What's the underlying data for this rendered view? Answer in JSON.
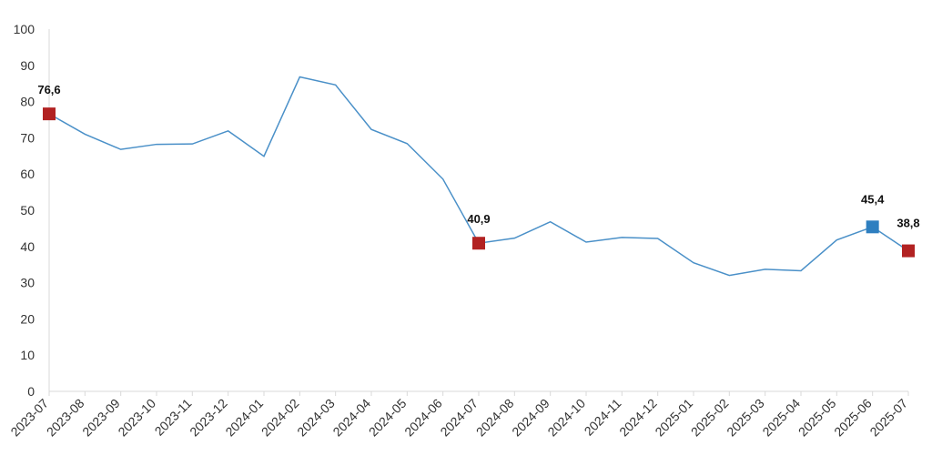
{
  "chart_data": {
    "type": "line",
    "title": "",
    "xlabel": "",
    "ylabel": "",
    "ylim": [
      0,
      100
    ],
    "yticks": [
      0,
      10,
      20,
      30,
      40,
      50,
      60,
      70,
      80,
      90,
      100
    ],
    "grid": false,
    "legend": "none",
    "line_color": "#4a90c8",
    "categories": [
      "2023-07",
      "2023-08",
      "2023-09",
      "2023-10",
      "2023-11",
      "2023-12",
      "2024-01",
      "2024-02",
      "2024-03",
      "2024-04",
      "2024-05",
      "2024-06",
      "2024-07",
      "2024-08",
      "2024-09",
      "2024-10",
      "2024-11",
      "2024-12",
      "2025-01",
      "2025-02",
      "2025-03",
      "2025-04",
      "2025-05",
      "2025-06",
      "2025-07"
    ],
    "series": [
      {
        "values": [
          76.6,
          71.0,
          66.8,
          68.2,
          68.3,
          71.9,
          64.9,
          86.8,
          84.6,
          72.3,
          68.4,
          58.6,
          40.9,
          42.3,
          46.8,
          41.2,
          42.5,
          42.2,
          35.5,
          32.0,
          33.7,
          33.3,
          41.8,
          45.4,
          38.8
        ]
      }
    ],
    "highlights": [
      {
        "category": "2023-07",
        "value": 76.6,
        "label": "76,6",
        "color": "#b22222"
      },
      {
        "category": "2024-07",
        "value": 40.9,
        "label": "40,9",
        "color": "#b22222"
      },
      {
        "category": "2025-06",
        "value": 45.4,
        "label": "45,4",
        "color": "#2e7fc0"
      },
      {
        "category": "2025-07",
        "value": 38.8,
        "label": "38,8",
        "color": "#b22222"
      }
    ]
  }
}
